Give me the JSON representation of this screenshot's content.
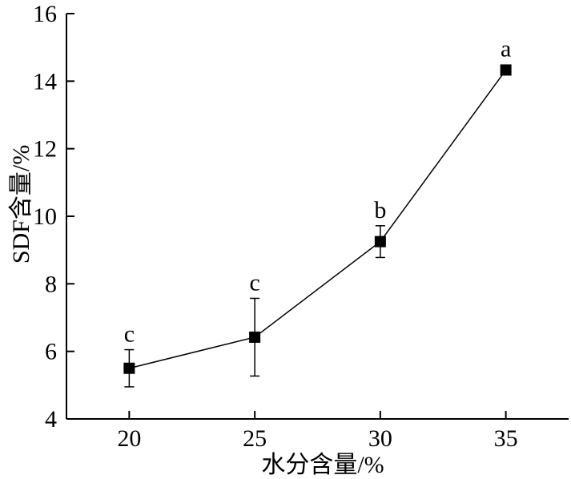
{
  "chart_data": {
    "type": "line",
    "xlabel": "水分含量/%",
    "ylabel": "SDF含量/%",
    "xlim": [
      17.5,
      37.5
    ],
    "ylim": [
      4,
      16
    ],
    "x_ticks": [
      20,
      25,
      30,
      35
    ],
    "y_ticks": [
      4,
      6,
      8,
      10,
      12,
      14,
      16
    ],
    "grid": false,
    "series": [
      {
        "x": [
          20,
          25,
          30,
          35
        ],
        "y": [
          5.5,
          6.42,
          9.25,
          14.33
        ],
        "error": [
          0.55,
          1.15,
          0.47,
          0.08
        ],
        "labels": [
          "c",
          "c",
          "b",
          "a"
        ],
        "marker": "square",
        "color": "#000000"
      }
    ]
  }
}
